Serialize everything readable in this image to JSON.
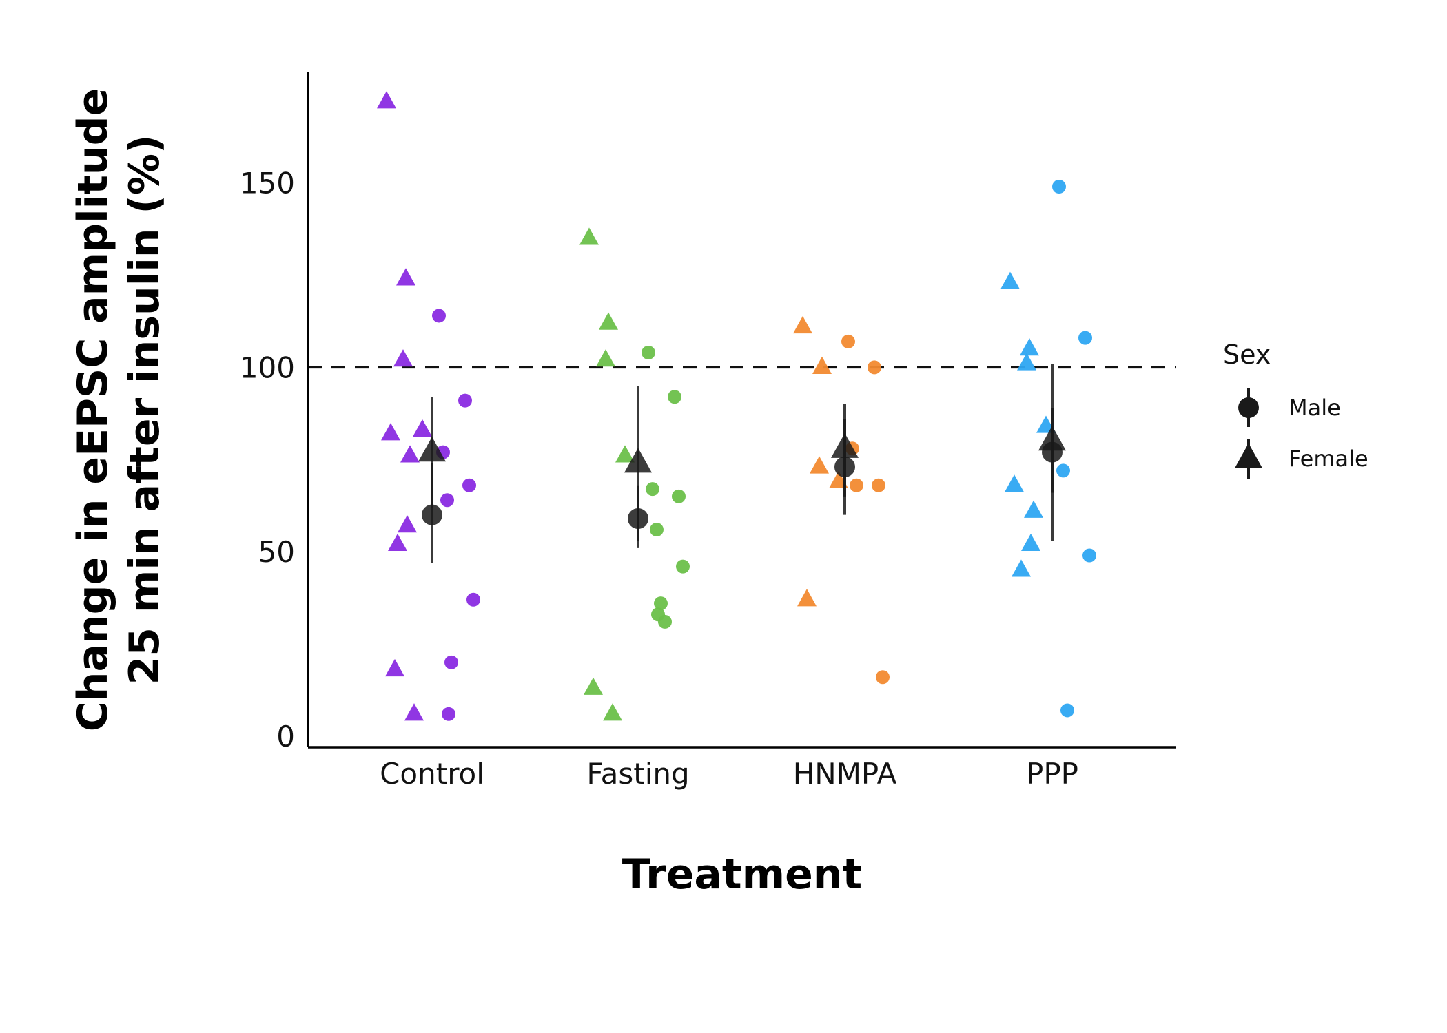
{
  "chart_data": {
    "type": "scatter",
    "xlabel": "Treatment",
    "ylabel_line1": "Change in eEPSC amplitude",
    "ylabel_line2": "25 min after insulin (%)",
    "categories": [
      "Control",
      "Fasting",
      "HNMPA",
      "PPP"
    ],
    "ylim": [
      -3,
      180
    ],
    "yticks": [
      0,
      50,
      100,
      150
    ],
    "reference_line": 100,
    "grid": false,
    "legend": {
      "title": "Sex",
      "position": "right",
      "entries": [
        {
          "label": "Male",
          "shape": "circle"
        },
        {
          "label": "Female",
          "shape": "triangle"
        }
      ]
    },
    "colors": {
      "Control": "#8a2be2",
      "Fasting": "#6cc04a",
      "HNMPA": "#f28a30",
      "PPP": "#2ea7f2",
      "summary": "#1a1a1a"
    },
    "points": {
      "Control": {
        "female": [
          172,
          124,
          102,
          83,
          82,
          76,
          57,
          52,
          18,
          6
        ],
        "male": [
          114,
          91,
          77,
          68,
          64,
          37,
          20,
          6
        ]
      },
      "Fasting": {
        "female": [
          135,
          112,
          102,
          76,
          13,
          6
        ],
        "male": [
          104,
          92,
          67,
          65,
          56,
          46,
          36,
          33,
          31
        ]
      },
      "HNMPA": {
        "female": [
          111,
          100,
          73,
          69,
          37
        ],
        "male": [
          107,
          100,
          78,
          68,
          68,
          16
        ]
      },
      "PPP": {
        "female": [
          123,
          105,
          101,
          84,
          68,
          61,
          52,
          45
        ],
        "male": [
          149,
          108,
          72,
          49,
          7
        ]
      }
    },
    "summary": {
      "Control": {
        "male": {
          "mean": 60,
          "low": 47,
          "high": 74
        },
        "female": {
          "mean": 77,
          "low": 62,
          "high": 92
        }
      },
      "Fasting": {
        "male": {
          "mean": 59,
          "low": 51,
          "high": 68
        },
        "female": {
          "mean": 74,
          "low": 53,
          "high": 95
        }
      },
      "HNMPA": {
        "male": {
          "mean": 73,
          "low": 65,
          "high": 86
        },
        "female": {
          "mean": 78,
          "low": 60,
          "high": 90
        }
      },
      "PPP": {
        "male": {
          "mean": 77,
          "low": 66,
          "high": 89
        },
        "female": {
          "mean": 80,
          "low": 53,
          "high": 101
        }
      }
    }
  }
}
